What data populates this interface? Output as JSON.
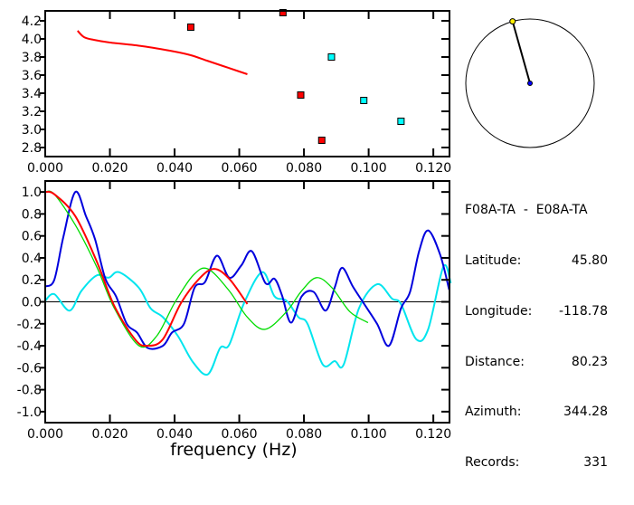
{
  "chart_data": [
    {
      "type": "scatter",
      "title": "",
      "xlabel": "",
      "ylabel": "",
      "xlim": [
        0,
        0.125
      ],
      "ylim": [
        2.7,
        4.31
      ],
      "xticks": [
        "0.000",
        "0.020",
        "0.040",
        "0.060",
        "0.080",
        "0.100",
        "0.120"
      ],
      "yticks": [
        "2.8",
        "3.0",
        "3.2",
        "3.4",
        "3.6",
        "3.8",
        "4.0",
        "4.2"
      ],
      "series": [
        {
          "name": "curve",
          "kind": "line",
          "color": "#ff0000",
          "x": [
            0.01,
            0.012,
            0.015,
            0.02,
            0.03,
            0.04,
            0.045,
            0.05,
            0.055,
            0.06,
            0.0625
          ],
          "y": [
            4.09,
            4.02,
            3.99,
            3.96,
            3.92,
            3.86,
            3.82,
            3.76,
            3.7,
            3.64,
            3.61
          ]
        },
        {
          "name": "red-points",
          "kind": "points",
          "color": "#ff0000",
          "x": [
            0.045,
            0.0735,
            0.079,
            0.0855
          ],
          "y": [
            4.13,
            4.29,
            3.38,
            2.88
          ]
        },
        {
          "name": "cyan-points",
          "kind": "points",
          "color": "#00ffff",
          "x": [
            0.0885,
            0.0985,
            0.11
          ],
          "y": [
            3.8,
            3.32,
            3.09
          ]
        }
      ]
    },
    {
      "type": "line",
      "title": "",
      "xlabel": "frequency (Hz)",
      "ylabel": "",
      "xlim": [
        0,
        0.125
      ],
      "ylim": [
        -1.1,
        1.1
      ],
      "xticks": [
        "0.000",
        "0.020",
        "0.040",
        "0.060",
        "0.080",
        "0.100",
        "0.120"
      ],
      "yticks": [
        "-1.0",
        "-0.8",
        "-0.6",
        "-0.4",
        "-0.2",
        "0.0",
        "0.2",
        "0.4",
        "0.6",
        "0.8",
        "1.0"
      ],
      "series": [
        {
          "name": "cyan",
          "color": "#00e5ee",
          "x": [
            0,
            0.0028,
            0.0075,
            0.0112,
            0.0159,
            0.0196,
            0.0228,
            0.0289,
            0.0326,
            0.0364,
            0.041,
            0.0457,
            0.0503,
            0.0541,
            0.0569,
            0.0615,
            0.0671,
            0.0709,
            0.0746,
            0.0783,
            0.0811,
            0.0858,
            0.0895,
            0.0923,
            0.097,
            0.1026,
            0.1072,
            0.11,
            0.1147,
            0.1184,
            0.1231,
            0.1254
          ],
          "y": [
            0.01,
            0.07,
            -0.08,
            0.1,
            0.24,
            0.22,
            0.27,
            0.13,
            -0.06,
            -0.14,
            -0.31,
            -0.55,
            -0.66,
            -0.42,
            -0.39,
            -0.01,
            0.27,
            0.05,
            0.01,
            -0.14,
            -0.2,
            -0.57,
            -0.54,
            -0.57,
            -0.06,
            0.16,
            0.03,
            -0.02,
            -0.34,
            -0.25,
            0.32,
            0.17
          ]
        },
        {
          "name": "blue",
          "color": "#0000dd",
          "x": [
            0,
            0.0028,
            0.0056,
            0.0093,
            0.0126,
            0.0154,
            0.0186,
            0.0219,
            0.0252,
            0.0284,
            0.0317,
            0.0364,
            0.0392,
            0.0429,
            0.0462,
            0.0494,
            0.0531,
            0.0569,
            0.0606,
            0.0639,
            0.0681,
            0.0709,
            0.0732,
            0.076,
            0.0793,
            0.083,
            0.0867,
            0.0895,
            0.0918,
            0.0951,
            0.0984,
            0.1026,
            0.1063,
            0.11,
            0.1128,
            0.1156,
            0.1184,
            0.1221,
            0.1249
          ],
          "y": [
            0.14,
            0.2,
            0.59,
            1.0,
            0.78,
            0.57,
            0.21,
            0.05,
            -0.2,
            -0.28,
            -0.42,
            -0.4,
            -0.28,
            -0.2,
            0.13,
            0.18,
            0.42,
            0.22,
            0.33,
            0.46,
            0.17,
            0.21,
            0.06,
            -0.19,
            0.05,
            0.09,
            -0.08,
            0.13,
            0.31,
            0.14,
            -0.01,
            -0.2,
            -0.4,
            -0.06,
            0.09,
            0.46,
            0.65,
            0.43,
            0.11
          ]
        },
        {
          "name": "green",
          "color": "#00dd00",
          "x": [
            0,
            0.0028,
            0.0093,
            0.0159,
            0.0214,
            0.029,
            0.0345,
            0.04,
            0.0457,
            0.0503,
            0.0569,
            0.0625,
            0.068,
            0.0746,
            0.0793,
            0.0839,
            0.0886,
            0.0942,
            0.0998
          ],
          "y": [
            1.0,
            0.98,
            0.7,
            0.32,
            -0.06,
            -0.4,
            -0.31,
            -0.01,
            0.24,
            0.3,
            0.1,
            -0.14,
            -0.25,
            -0.09,
            0.1,
            0.22,
            0.13,
            -0.09,
            -0.19
          ]
        },
        {
          "name": "red",
          "color": "#ff0000",
          "x": [
            0,
            0.0028,
            0.0093,
            0.0159,
            0.0214,
            0.028,
            0.0317,
            0.0364,
            0.042,
            0.0476,
            0.0522,
            0.0569,
            0.0625
          ],
          "y": [
            1.0,
            0.98,
            0.78,
            0.37,
            -0.04,
            -0.35,
            -0.4,
            -0.34,
            -0.01,
            0.21,
            0.3,
            0.21,
            -0.02
          ]
        }
      ]
    }
  ],
  "compass": {
    "azimuth_deg": 344.28,
    "color_end": "#ffee00",
    "color_center": "#0000ff"
  },
  "info": {
    "title": "F08A-TA  -  E08A-TA",
    "rows": [
      {
        "label": "Latitude:",
        "value": "45.80"
      },
      {
        "label": "Longitude:",
        "value": "-118.78"
      },
      {
        "label": "Distance:",
        "value": "80.23"
      },
      {
        "label": "Azimuth:",
        "value": "344.28"
      },
      {
        "label": "Records:",
        "value": "331"
      }
    ]
  }
}
